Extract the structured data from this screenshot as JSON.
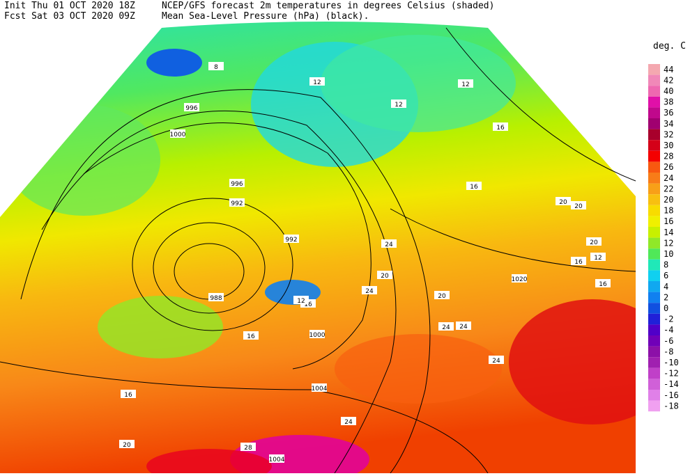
{
  "header": {
    "init": "Init  Thu 01 OCT 2020 18Z",
    "fcst": "Fcst Sat 03 OCT 2020 09Z",
    "title": "NCEP/GFS forecast 2m temperatures in degrees Celsius (shaded)",
    "subtitle": "Mean Sea-Level Pressure (hPa) (black)."
  },
  "legend": {
    "unit": "deg. C",
    "levels": [
      44,
      42,
      40,
      38,
      36,
      34,
      32,
      30,
      28,
      26,
      24,
      22,
      20,
      18,
      16,
      14,
      12,
      10,
      8,
      6,
      4,
      2,
      0,
      -2,
      -4,
      -6,
      -8,
      -10,
      -12,
      -14,
      -16,
      -18
    ],
    "colors": [
      "#f4a8b0",
      "#f088b8",
      "#ee68b0",
      "#e010a8",
      "#c0088c",
      "#a00070",
      "#a8002c",
      "#d40018",
      "#f40000",
      "#f85810",
      "#f87c18",
      "#f8a018",
      "#f8c010",
      "#f8dc00",
      "#f0f000",
      "#c8f000",
      "#90e828",
      "#50e858",
      "#20e8b8",
      "#10d0f0",
      "#10a8f0",
      "#1080f0",
      "#1050e0",
      "#2020d8",
      "#5000c8",
      "#7000b8",
      "#8c10a8",
      "#a020b0",
      "#c040c8",
      "#d060d8",
      "#e080e8",
      "#f0a0f0"
    ]
  },
  "map_labels": {
    "isobars": [
      "996",
      "1000",
      "996",
      "992",
      "992",
      "988",
      "1000",
      "1004",
      "1020",
      "1004"
    ],
    "temperatures": [
      "8",
      "12",
      "12",
      "12",
      "16",
      "16",
      "20",
      "20",
      "20",
      "12",
      "16",
      "16",
      "20",
      "24",
      "24",
      "24",
      "24",
      "20",
      "16",
      "12",
      "16",
      "16",
      "20",
      "28",
      "24",
      "24"
    ]
  }
}
